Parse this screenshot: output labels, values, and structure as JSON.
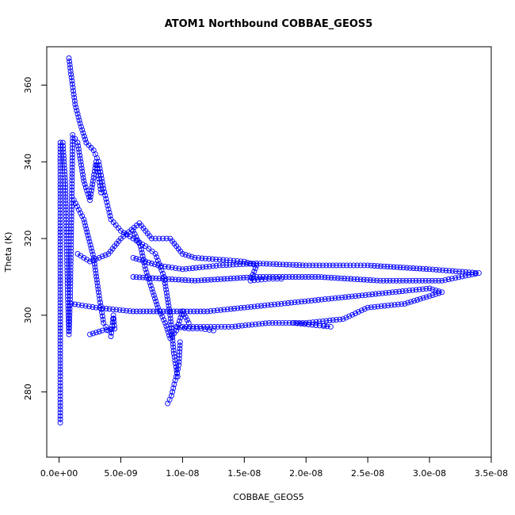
{
  "chart_data": {
    "type": "scatter",
    "title": "ATOM1 Northbound COBBAE_GEOS5",
    "xlabel": "COBBAE_GEOS5",
    "ylabel": "Theta (K)",
    "xlim": [
      -1e-09,
      3.5e-08
    ],
    "ylim": [
      263,
      370
    ],
    "x_ticks": [
      0,
      5e-09,
      1e-08,
      1.5e-08,
      2e-08,
      2.5e-08,
      3e-08,
      3.5e-08
    ],
    "x_tick_labels": [
      "0.0e+00",
      "5.0e-09",
      "1.0e-08",
      "1.5e-08",
      "2.0e-08",
      "2.5e-08",
      "3.0e-08",
      "3.5e-08"
    ],
    "y_ticks": [
      280,
      300,
      320,
      340,
      360
    ],
    "y_tick_labels": [
      "280",
      "300",
      "320",
      "340",
      "360"
    ],
    "grid": false,
    "marker": "open-circle",
    "connected": true,
    "color": "#0000ff",
    "series": [
      {
        "segments": [
          [
            [
              1e-10,
              272
            ],
            [
              1e-10,
              285
            ],
            [
              1e-10,
              300
            ],
            [
              1e-10,
              315
            ],
            [
              1e-10,
              330
            ],
            [
              1e-10,
              345
            ],
            [
              3e-10,
              345
            ],
            [
              5e-10,
              335
            ],
            [
              6e-10,
              320
            ],
            [
              7e-10,
              305
            ],
            [
              8e-10,
              295
            ],
            [
              9e-10,
              305
            ],
            [
              1e-09,
              325
            ],
            [
              1.1e-09,
              347
            ],
            [
              1.5e-09,
              345
            ],
            [
              2e-09,
              335
            ],
            [
              2.5e-09,
              330
            ],
            [
              3e-09,
              340
            ],
            [
              3.4e-09,
              332
            ]
          ],
          [
            [
              8e-10,
              367
            ],
            [
              1e-09,
              362
            ],
            [
              1.3e-09,
              355
            ],
            [
              1.7e-09,
              350
            ],
            [
              2.2e-09,
              345
            ],
            [
              2.8e-09,
              343
            ],
            [
              3.2e-09,
              340
            ],
            [
              3.6e-09,
              333
            ],
            [
              4.2e-09,
              325
            ],
            [
              5e-09,
              322
            ],
            [
              6e-09,
              320
            ],
            [
              7e-09,
              318
            ],
            [
              7.8e-09,
              316
            ],
            [
              8.5e-09,
              310
            ],
            [
              9e-09,
              300
            ],
            [
              9.3e-09,
              290
            ],
            [
              9.6e-09,
              284
            ]
          ],
          [
            [
              8.8e-09,
              277
            ],
            [
              9.1e-09,
              279
            ],
            [
              9.4e-09,
              283
            ],
            [
              9.7e-09,
              287
            ],
            [
              9.8e-09,
              293
            ]
          ],
          [
            [
              1.5e-09,
              316
            ],
            [
              2.5e-09,
              314
            ],
            [
              4e-09,
              316
            ],
            [
              5e-09,
              320
            ],
            [
              6.5e-09,
              324
            ],
            [
              7.5e-09,
              320
            ],
            [
              9e-09,
              320
            ],
            [
              1e-08,
              316
            ],
            [
              1.1e-08,
              315
            ],
            [
              1.3e-08,
              314.5
            ],
            [
              1.5e-08,
              314
            ],
            [
              1.6e-08,
              313
            ],
            [
              1.55e-08,
              309
            ],
            [
              1.7e-08,
              309.5
            ],
            [
              1.8e-08,
              309.5
            ]
          ],
          [
            [
              6e-09,
              315
            ],
            [
              8e-09,
              313
            ],
            [
              1e-08,
              312
            ],
            [
              1.3e-08,
              313
            ],
            [
              1.6e-08,
              313.5
            ],
            [
              2e-08,
              313
            ],
            [
              2.3e-08,
              313
            ],
            [
              2.5e-08,
              313
            ],
            [
              3e-08,
              312
            ],
            [
              3.4e-08,
              311
            ],
            [
              3.1e-08,
              309
            ],
            [
              2.6e-08,
              309
            ],
            [
              2.1e-08,
              310
            ],
            [
              1.6e-08,
              310
            ],
            [
              1.1e-08,
              309
            ],
            [
              6e-09,
              310
            ]
          ],
          [
            [
              1e-09,
              303
            ],
            [
              3e-09,
              302
            ],
            [
              6e-09,
              301
            ],
            [
              9e-09,
              301
            ],
            [
              1.2e-08,
              301
            ],
            [
              1.5e-08,
              302
            ],
            [
              1.8e-08,
              303
            ],
            [
              2.1e-08,
              304
            ],
            [
              2.4e-08,
              305
            ],
            [
              2.7e-08,
              306
            ],
            [
              3e-08,
              307
            ],
            [
              3.1e-08,
              306
            ],
            [
              2.8e-08,
              303
            ],
            [
              2.5e-08,
              302
            ],
            [
              2.3e-08,
              299
            ],
            [
              2e-08,
              298
            ],
            [
              1.7e-08,
              298
            ],
            [
              1.4e-08,
              297
            ],
            [
              1.2e-08,
              297
            ],
            [
              1e-08,
              297
            ]
          ],
          [
            [
              1.9e-08,
              298
            ],
            [
              2.05e-08,
              297.5
            ],
            [
              2.2e-08,
              297
            ],
            [
              2.15e-08,
              297.3
            ]
          ],
          [
            [
              2.5e-09,
              295
            ],
            [
              3.5e-09,
              296
            ],
            [
              4.5e-09,
              296.5
            ],
            [
              4.4e-09,
              300
            ],
            [
              4.2e-09,
              294.5
            ]
          ],
          [
            [
              6e-09,
              322
            ],
            [
              6.6e-09,
              318
            ],
            [
              7e-09,
              312
            ],
            [
              7.6e-09,
              306
            ],
            [
              8e-09,
              302
            ],
            [
              8.6e-09,
              298
            ],
            [
              9e-09,
              294
            ],
            [
              9.5e-09,
              296
            ],
            [
              1e-08,
              301
            ],
            [
              1.05e-08,
              298
            ]
          ],
          [
            [
              9.5e-09,
              297
            ],
            [
              1.05e-08,
              296.5
            ],
            [
              1.15e-08,
              296.5
            ],
            [
              1.25e-08,
              296
            ]
          ],
          [
            [
              1.2e-09,
              330
            ],
            [
              2e-09,
              325
            ],
            [
              2.8e-09,
              315
            ],
            [
              3.2e-09,
              306
            ],
            [
              3.6e-09,
              298
            ],
            [
              4e-09,
              296
            ]
          ]
        ]
      }
    ]
  }
}
